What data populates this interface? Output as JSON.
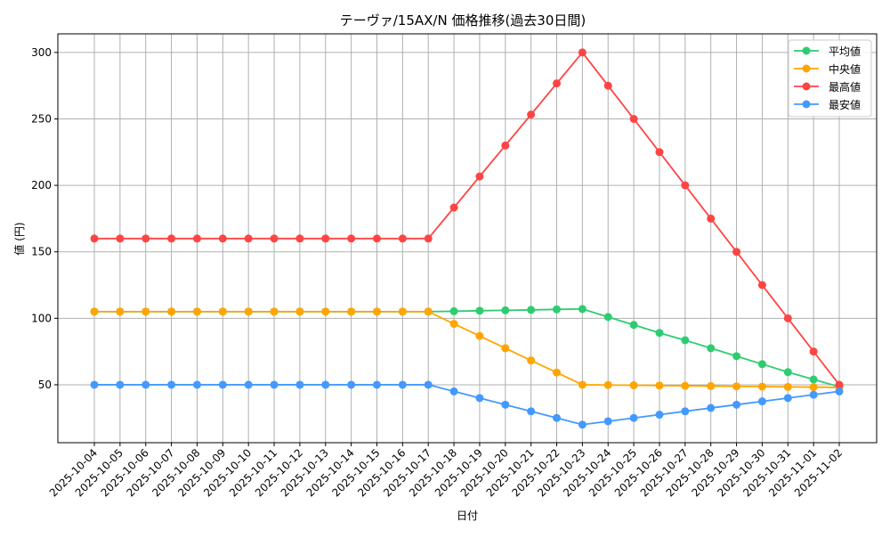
{
  "chart_data": {
    "type": "line",
    "title": "テーヴァ/15AX/N 価格推移(過去30日間)",
    "xlabel": "日付",
    "ylabel": "値 (円)",
    "ylim": [
      6.4,
      314
    ],
    "yticks": [
      50,
      100,
      150,
      200,
      250,
      300
    ],
    "grid": true,
    "legend_position": "top-right",
    "x": [
      "2025-10-04",
      "2025-10-05",
      "2025-10-06",
      "2025-10-07",
      "2025-10-08",
      "2025-10-09",
      "2025-10-10",
      "2025-10-11",
      "2025-10-12",
      "2025-10-13",
      "2025-10-14",
      "2025-10-15",
      "2025-10-16",
      "2025-10-17",
      "2025-10-18",
      "2025-10-19",
      "2025-10-20",
      "2025-10-21",
      "2025-10-22",
      "2025-10-23",
      "2025-10-24",
      "2025-10-25",
      "2025-10-26",
      "2025-10-27",
      "2025-10-28",
      "2025-10-29",
      "2025-10-30",
      "2025-10-31",
      "2025-11-01",
      "2025-11-02"
    ],
    "series": [
      {
        "name": "平均値",
        "color": "#2ecc71",
        "values": [
          105,
          105,
          105,
          105,
          105,
          105,
          105,
          105,
          105,
          105,
          105,
          105,
          105,
          105,
          105.3,
          105.7,
          106,
          106.3,
          106.7,
          107,
          101,
          95,
          89,
          83.5,
          77.5,
          71.5,
          65.5,
          59.5,
          54,
          48.5
        ]
      },
      {
        "name": "中央値",
        "color": "#ffa500",
        "values": [
          105,
          105,
          105,
          105,
          105,
          105,
          105,
          105,
          105,
          105,
          105,
          105,
          105,
          105,
          95.8,
          86.7,
          77.5,
          68.3,
          59.2,
          50,
          49.8,
          49.6,
          49.4,
          49.2,
          49,
          48.8,
          48.6,
          48.4,
          48.2,
          48
        ]
      },
      {
        "name": "最高値",
        "color": "#ff4444",
        "values": [
          160,
          160,
          160,
          160,
          160,
          160,
          160,
          160,
          160,
          160,
          160,
          160,
          160,
          160,
          183.3,
          206.7,
          230,
          253.3,
          276.7,
          300,
          275,
          250,
          225,
          200,
          175,
          150,
          125,
          100,
          75,
          50
        ]
      },
      {
        "name": "最安値",
        "color": "#4499ff",
        "values": [
          50,
          50,
          50,
          50,
          50,
          50,
          50,
          50,
          50,
          50,
          50,
          50,
          50,
          50,
          45,
          40,
          35,
          30,
          25,
          20,
          22.5,
          25,
          27.5,
          30,
          32.5,
          35,
          37.5,
          40,
          42.5,
          45
        ]
      }
    ]
  }
}
